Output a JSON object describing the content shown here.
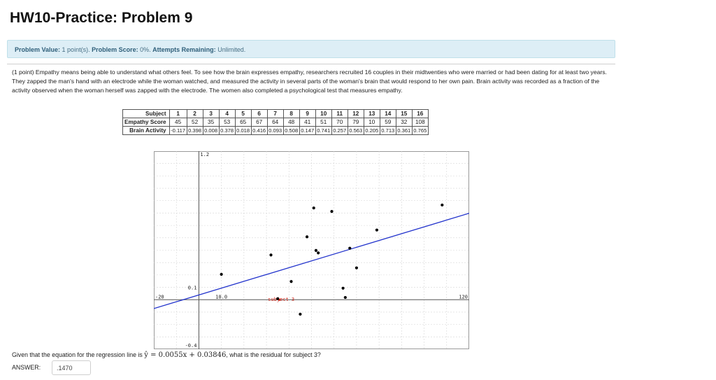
{
  "title": "HW10-Practice: Problem 9",
  "info": {
    "value_label": "Problem Value:",
    "value_text": "1 point(s).",
    "score_label": "Problem Score:",
    "score_text": "0%.",
    "attempts_label": "Attempts Remaining:",
    "attempts_text": "Unlimited."
  },
  "problem": {
    "text": "(1 point) Empathy means being able to understand what others feel. To see how the brain expresses empathy, researchers recruited 16 couples in their midtwenties who were married or had been dating for at least two years. They zapped the man's hand with an electrode while the woman watched, and measured the activity in several parts of the woman's brain that would respond to her own pain. Brain activity was recorded as a fraction of the activity observed when the woman herself was zapped with the electrode. The women also completed a psychological test that measures empathy."
  },
  "table": {
    "row_labels": [
      "Subject",
      "Empathy Score",
      "Brain Activity"
    ],
    "subjects": [
      "1",
      "2",
      "3",
      "4",
      "5",
      "6",
      "7",
      "8",
      "9",
      "10",
      "11",
      "12",
      "13",
      "14",
      "15",
      "16"
    ],
    "empathy": [
      "45",
      "52",
      "35",
      "53",
      "65",
      "67",
      "64",
      "48",
      "41",
      "51",
      "70",
      "79",
      "10",
      "59",
      "32",
      "108"
    ],
    "brain": [
      "-0.117",
      "0.398",
      "0.008",
      "0.378",
      "0.018",
      "0.416",
      "0.093",
      "0.508",
      "0.147",
      "0.741",
      "0.257",
      "0.563",
      "0.205",
      "0.713",
      "0.361",
      "0.765"
    ]
  },
  "chart_data": {
    "type": "scatter",
    "x": [
      45,
      52,
      35,
      53,
      65,
      67,
      64,
      48,
      41,
      51,
      70,
      79,
      10,
      59,
      32,
      108
    ],
    "y": [
      -0.117,
      0.398,
      0.008,
      0.378,
      0.018,
      0.416,
      0.093,
      0.508,
      0.147,
      0.741,
      0.257,
      0.563,
      0.205,
      0.713,
      0.361,
      0.765
    ],
    "xlim": [
      -20,
      120
    ],
    "ylim": [
      -0.4,
      1.2
    ],
    "regression": {
      "slope": 0.0055,
      "intercept": 0.03846,
      "color": "#2233cc"
    },
    "tick_labels": {
      "x_min": "-20",
      "x_mid": "10.0",
      "x_max": "120",
      "y_max": "1.2",
      "y_mid": "0.1",
      "y_min": "-0.4"
    },
    "highlight": {
      "label": "subject 3",
      "color": "#d42a1d",
      "x": 35,
      "y": 0.008
    },
    "grid": true,
    "point_color": "#000000",
    "axis_color": "#555555"
  },
  "question": {
    "prefix": "Given that the equation for the regression line is ",
    "equation": "ŷ = 0.0055x + 0.03846",
    "suffix": ", what is the residual for subject 3?"
  },
  "answer": {
    "label": "ANSWER:",
    "value": ".1470"
  }
}
